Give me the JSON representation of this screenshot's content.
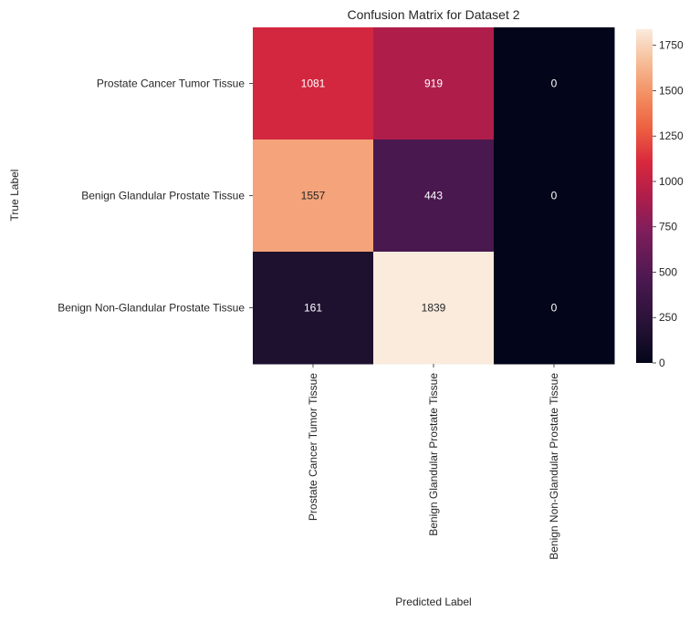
{
  "chart_data": {
    "type": "heatmap",
    "title": "Confusion Matrix for Dataset 2",
    "xlabel": "Predicted Label",
    "ylabel": "True Label",
    "x_categories": [
      "Prostate Cancer Tumor Tissue",
      "Benign Glandular Prostate Tissue",
      "Benign Non-Glandular Prostate Tissue"
    ],
    "y_categories": [
      "Prostate Cancer Tumor Tissue",
      "Benign Glandular Prostate Tissue",
      "Benign Non-Glandular Prostate Tissue"
    ],
    "values": [
      [
        1081,
        919,
        0
      ],
      [
        1557,
        443,
        0
      ],
      [
        161,
        1839,
        0
      ]
    ],
    "colorbar": {
      "min": 0,
      "max": 1839,
      "ticks": [
        0,
        250,
        500,
        750,
        1000,
        1250,
        1500,
        1750
      ],
      "colormap": "rocket"
    },
    "annotation_colors": {
      "light": "#ffffff",
      "dark": "#262626"
    }
  }
}
